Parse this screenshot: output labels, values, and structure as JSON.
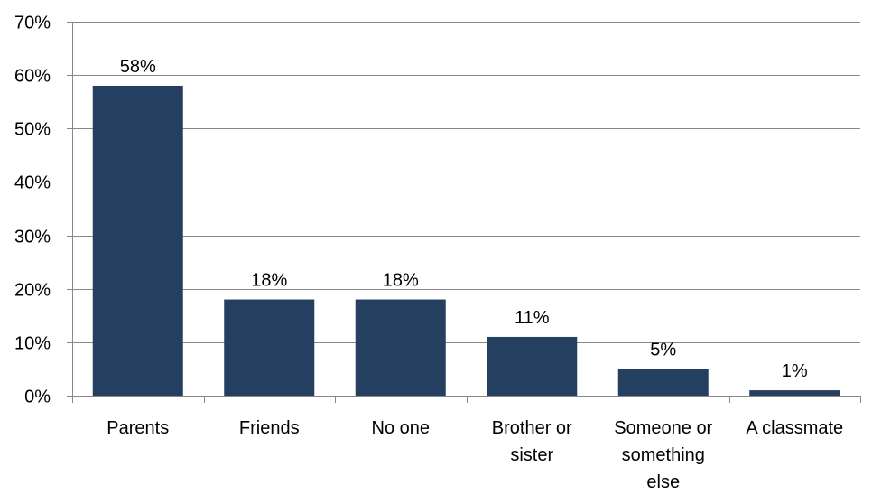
{
  "chart_data": {
    "type": "bar",
    "categories": [
      [
        "Parents"
      ],
      [
        "Friends"
      ],
      [
        "No one"
      ],
      [
        "Brother or",
        "sister"
      ],
      [
        "Someone or",
        "something",
        "else"
      ],
      [
        "A classmate"
      ]
    ],
    "values": [
      58,
      18,
      18,
      11,
      5,
      1
    ],
    "data_labels": [
      "58%",
      "18%",
      "18%",
      "11%",
      "5%",
      "1%"
    ],
    "ylim": [
      0,
      70
    ],
    "y_ticks": [
      0,
      10,
      20,
      30,
      40,
      50,
      60,
      70
    ],
    "y_tick_labels": [
      "0%",
      "10%",
      "20%",
      "30%",
      "40%",
      "50%",
      "60%",
      "70%"
    ],
    "grid": true,
    "legend": "none",
    "title": "",
    "xlabel": "",
    "ylabel": "",
    "colors": {
      "bar": "#253f61",
      "grid": "#878787",
      "axis": "#878787"
    }
  }
}
